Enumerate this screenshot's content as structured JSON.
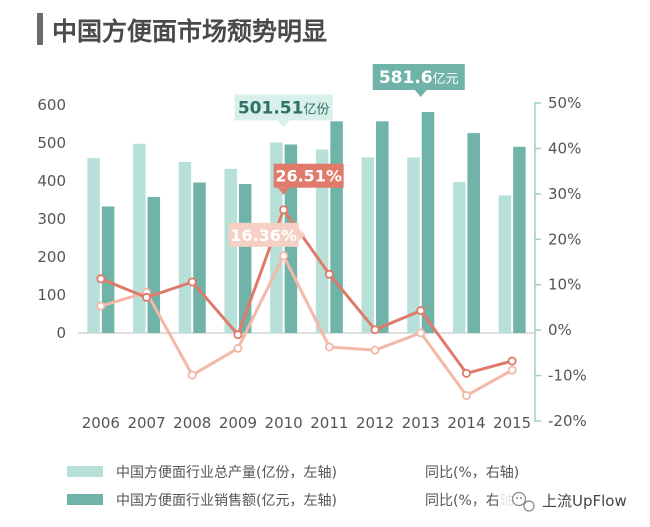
{
  "chart_data": {
    "type": "bar",
    "title": "中国方便面市场颓势明显",
    "categories": [
      "2006",
      "2007",
      "2008",
      "2009",
      "2010",
      "2011",
      "2012",
      "2013",
      "2014",
      "2015"
    ],
    "left_axis": {
      "ticks": [
        "0",
        "100",
        "200",
        "300",
        "400",
        "500",
        "600"
      ],
      "ylim": [
        0,
        600
      ]
    },
    "right_axis": {
      "ticks": [
        "-20%",
        "-10%",
        "0%",
        "10%",
        "20%",
        "30%",
        "40%",
        "50%"
      ],
      "ylim": [
        -20,
        50
      ]
    },
    "series": [
      {
        "name": "中国方便面行业总产量(亿份，左轴)",
        "kind": "bar",
        "axis": "left",
        "color": "#b7e0d8",
        "values": [
          460,
          498,
          450,
          432,
          501.51,
          483,
          462,
          462,
          397,
          362
        ]
      },
      {
        "name": "中国方便面行业销售额(亿元，左轴)",
        "kind": "bar",
        "axis": "left",
        "color": "#6fb3a9",
        "values": [
          333,
          358,
          396,
          392,
          496,
          557,
          557,
          581.6,
          526,
          490
        ]
      },
      {
        "name": "同比(%，右轴)",
        "kind": "line",
        "axis": "right",
        "color": "#f2b8a8",
        "values": [
          5.3,
          8.3,
          -9.9,
          -4.0,
          16.36,
          -3.7,
          -4.4,
          -0.6,
          -14.4,
          -8.8
        ]
      },
      {
        "name": "同比(%，右轴)",
        "kind": "line",
        "axis": "right",
        "color": "#e07a6b",
        "values": [
          11.3,
          7.2,
          10.6,
          -1.0,
          26.51,
          12.3,
          0.1,
          4.3,
          -9.5,
          -6.8
        ]
      }
    ],
    "callouts": [
      {
        "text": "501.51",
        "unit": "亿份",
        "series": 0,
        "index": 4
      },
      {
        "text": "581.6",
        "unit": "亿元",
        "series": 1,
        "index": 7
      },
      {
        "text": "26.51%",
        "series": 3,
        "index": 4
      },
      {
        "text": "16.36%",
        "series": 2,
        "index": 4
      }
    ],
    "legend_position": "bottom",
    "legend_labels": {
      "left": [
        "中国方便面行业总产量(亿份，左轴)",
        "中国方便面行业销售额(亿元，左轴)"
      ],
      "right": [
        "同比(%，右轴)",
        "同比(%，右轴)"
      ]
    }
  },
  "watermark": {
    "text": "上流UpFlow"
  },
  "colors": {
    "title_bar": "#6b6b6b",
    "title_text": "#4a4a4a",
    "axis_text": "#555555",
    "axis_line": "#9fcfc8"
  }
}
